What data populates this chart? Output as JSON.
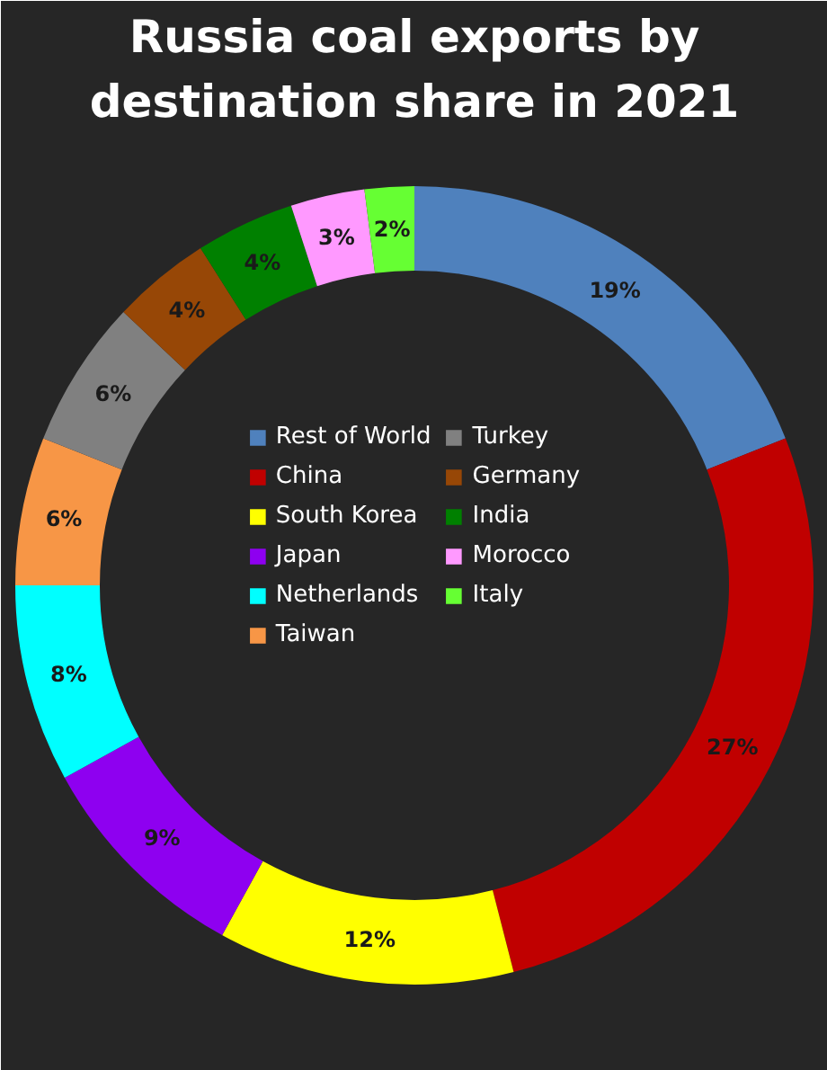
{
  "chart_data": {
    "type": "donut",
    "title": "Russia coal exports by destination share in 2021",
    "categories": [
      "Rest of World",
      "China",
      "South Korea",
      "Japan",
      "Netherlands",
      "Taiwan",
      "Turkey",
      "Germany",
      "India",
      "Morocco",
      "Italy"
    ],
    "values": [
      19,
      27,
      12,
      9,
      8,
      6,
      6,
      4,
      4,
      3,
      2
    ],
    "value_labels": [
      "19%",
      "27%",
      "12%",
      "9%",
      "8%",
      "6%",
      "6%",
      "4%",
      "4%",
      "3%",
      "2%"
    ],
    "colors": [
      "#4f81bd",
      "#c00000",
      "#ffff00",
      "#8e00f0",
      "#00ffff",
      "#f79646",
      "#808080",
      "#974706",
      "#008000",
      "#ff99ff",
      "#66ff33"
    ],
    "legend": "center"
  }
}
